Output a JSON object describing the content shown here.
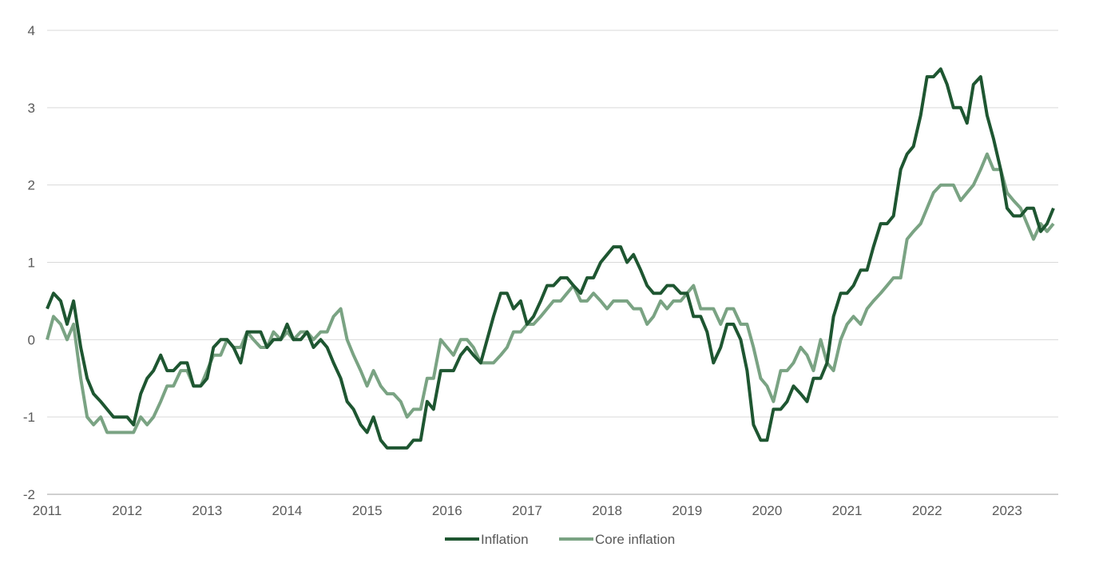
{
  "colors": {
    "inflation": "#1e5631",
    "core_inflation": "#7aa383",
    "grid": "#d9d9d9",
    "axis": "#bfbfbf",
    "text": "#595959"
  },
  "chart_data": {
    "type": "line",
    "title": "",
    "xlabel": "",
    "ylabel": "",
    "xlim": [
      2011,
      2023.64
    ],
    "ylim": [
      -2,
      4
    ],
    "y_ticks": [
      "-2",
      "-1",
      "0",
      "1",
      "2",
      "3",
      "4"
    ],
    "x_ticks": [
      "2011",
      "2012",
      "2013",
      "2014",
      "2015",
      "2016",
      "2017",
      "2018",
      "2019",
      "2020",
      "2021",
      "2022",
      "2023"
    ],
    "grid": true,
    "legend": "bottom-center",
    "series": [
      {
        "name": "Inflation",
        "points": [
          [
            2011.0,
            0.4
          ],
          [
            2011.08,
            0.6
          ],
          [
            2011.17,
            0.5
          ],
          [
            2011.25,
            0.2
          ],
          [
            2011.33,
            0.5
          ],
          [
            2011.42,
            -0.1
          ],
          [
            2011.5,
            -0.5
          ],
          [
            2011.58,
            -0.7
          ],
          [
            2011.67,
            -0.8
          ],
          [
            2011.75,
            -0.9
          ],
          [
            2011.83,
            -1.0
          ],
          [
            2011.92,
            -1.0
          ],
          [
            2012.0,
            -1.0
          ],
          [
            2012.08,
            -1.1
          ],
          [
            2012.17,
            -0.7
          ],
          [
            2012.25,
            -0.5
          ],
          [
            2012.33,
            -0.4
          ],
          [
            2012.42,
            -0.2
          ],
          [
            2012.5,
            -0.4
          ],
          [
            2012.58,
            -0.4
          ],
          [
            2012.67,
            -0.3
          ],
          [
            2012.75,
            -0.3
          ],
          [
            2012.83,
            -0.6
          ],
          [
            2012.92,
            -0.6
          ],
          [
            2013.0,
            -0.5
          ],
          [
            2013.08,
            -0.1
          ],
          [
            2013.17,
            0.0
          ],
          [
            2013.25,
            0.0
          ],
          [
            2013.33,
            -0.1
          ],
          [
            2013.42,
            -0.3
          ],
          [
            2013.5,
            0.1
          ],
          [
            2013.58,
            0.1
          ],
          [
            2013.67,
            0.1
          ],
          [
            2013.75,
            -0.1
          ],
          [
            2013.83,
            0.0
          ],
          [
            2013.92,
            0.0
          ],
          [
            2014.0,
            0.2
          ],
          [
            2014.08,
            0.0
          ],
          [
            2014.17,
            0.0
          ],
          [
            2014.25,
            0.1
          ],
          [
            2014.33,
            -0.1
          ],
          [
            2014.42,
            0.0
          ],
          [
            2014.5,
            -0.1
          ],
          [
            2014.58,
            -0.3
          ],
          [
            2014.67,
            -0.5
          ],
          [
            2014.75,
            -0.8
          ],
          [
            2014.83,
            -0.9
          ],
          [
            2014.92,
            -1.1
          ],
          [
            2015.0,
            -1.2
          ],
          [
            2015.08,
            -1.0
          ],
          [
            2015.17,
            -1.3
          ],
          [
            2015.25,
            -1.4
          ],
          [
            2015.33,
            -1.4
          ],
          [
            2015.42,
            -1.4
          ],
          [
            2015.5,
            -1.4
          ],
          [
            2015.58,
            -1.3
          ],
          [
            2015.67,
            -1.3
          ],
          [
            2015.75,
            -0.8
          ],
          [
            2015.83,
            -0.9
          ],
          [
            2015.92,
            -0.4
          ],
          [
            2016.0,
            -0.4
          ],
          [
            2016.08,
            -0.4
          ],
          [
            2016.17,
            -0.2
          ],
          [
            2016.25,
            -0.1
          ],
          [
            2016.33,
            -0.2
          ],
          [
            2016.42,
            -0.3
          ],
          [
            2016.5,
            0.0
          ],
          [
            2016.58,
            0.3
          ],
          [
            2016.67,
            0.6
          ],
          [
            2016.75,
            0.6
          ],
          [
            2016.83,
            0.4
          ],
          [
            2016.92,
            0.5
          ],
          [
            2017.0,
            0.2
          ],
          [
            2017.08,
            0.3
          ],
          [
            2017.17,
            0.5
          ],
          [
            2017.25,
            0.7
          ],
          [
            2017.33,
            0.7
          ],
          [
            2017.42,
            0.8
          ],
          [
            2017.5,
            0.8
          ],
          [
            2017.58,
            0.7
          ],
          [
            2017.67,
            0.6
          ],
          [
            2017.75,
            0.8
          ],
          [
            2017.83,
            0.8
          ],
          [
            2017.92,
            1.0
          ],
          [
            2018.0,
            1.1
          ],
          [
            2018.08,
            1.2
          ],
          [
            2018.17,
            1.2
          ],
          [
            2018.25,
            1.0
          ],
          [
            2018.33,
            1.1
          ],
          [
            2018.42,
            0.9
          ],
          [
            2018.5,
            0.7
          ],
          [
            2018.58,
            0.6
          ],
          [
            2018.67,
            0.6
          ],
          [
            2018.75,
            0.7
          ],
          [
            2018.83,
            0.7
          ],
          [
            2018.92,
            0.6
          ],
          [
            2019.0,
            0.6
          ],
          [
            2019.08,
            0.3
          ],
          [
            2019.17,
            0.3
          ],
          [
            2019.25,
            0.1
          ],
          [
            2019.33,
            -0.3
          ],
          [
            2019.42,
            -0.1
          ],
          [
            2019.5,
            0.2
          ],
          [
            2019.58,
            0.2
          ],
          [
            2019.67,
            0.0
          ],
          [
            2019.75,
            -0.4
          ],
          [
            2019.83,
            -1.1
          ],
          [
            2019.92,
            -1.3
          ],
          [
            2020.0,
            -1.3
          ],
          [
            2020.08,
            -0.9
          ],
          [
            2020.17,
            -0.9
          ],
          [
            2020.25,
            -0.8
          ],
          [
            2020.33,
            -0.6
          ],
          [
            2020.42,
            -0.7
          ],
          [
            2020.5,
            -0.8
          ],
          [
            2020.58,
            -0.5
          ],
          [
            2020.67,
            -0.5
          ],
          [
            2020.75,
            -0.3
          ],
          [
            2020.83,
            0.3
          ],
          [
            2020.92,
            0.6
          ],
          [
            2021.0,
            0.6
          ],
          [
            2021.08,
            0.7
          ],
          [
            2021.17,
            0.9
          ],
          [
            2021.25,
            0.9
          ],
          [
            2021.33,
            1.2
          ],
          [
            2021.42,
            1.5
          ],
          [
            2021.5,
            1.5
          ],
          [
            2021.58,
            1.6
          ],
          [
            2021.67,
            2.2
          ],
          [
            2021.75,
            2.4
          ],
          [
            2021.83,
            2.5
          ],
          [
            2021.92,
            2.9
          ],
          [
            2022.0,
            3.4
          ],
          [
            2022.08,
            3.4
          ],
          [
            2022.17,
            3.5
          ],
          [
            2022.25,
            3.3
          ],
          [
            2022.33,
            3.0
          ],
          [
            2022.42,
            3.0
          ],
          [
            2022.5,
            2.8
          ],
          [
            2022.58,
            3.3
          ],
          [
            2022.67,
            3.4
          ],
          [
            2022.75,
            2.9
          ],
          [
            2022.83,
            2.6
          ],
          [
            2022.92,
            2.2
          ],
          [
            2023.0,
            1.7
          ],
          [
            2023.08,
            1.6
          ],
          [
            2023.17,
            1.6
          ],
          [
            2023.25,
            1.7
          ],
          [
            2023.33,
            1.7
          ],
          [
            2023.42,
            1.4
          ],
          [
            2023.5,
            1.5
          ],
          [
            2023.58,
            1.7
          ]
        ]
      },
      {
        "name": "Core inflation",
        "points": [
          [
            2011.0,
            0.0
          ],
          [
            2011.08,
            0.3
          ],
          [
            2011.17,
            0.2
          ],
          [
            2011.25,
            0.0
          ],
          [
            2011.33,
            0.2
          ],
          [
            2011.42,
            -0.5
          ],
          [
            2011.5,
            -1.0
          ],
          [
            2011.58,
            -1.1
          ],
          [
            2011.67,
            -1.0
          ],
          [
            2011.75,
            -1.2
          ],
          [
            2011.83,
            -1.2
          ],
          [
            2011.92,
            -1.2
          ],
          [
            2012.0,
            -1.2
          ],
          [
            2012.08,
            -1.2
          ],
          [
            2012.17,
            -1.0
          ],
          [
            2012.25,
            -1.1
          ],
          [
            2012.33,
            -1.0
          ],
          [
            2012.42,
            -0.8
          ],
          [
            2012.5,
            -0.6
          ],
          [
            2012.58,
            -0.6
          ],
          [
            2012.67,
            -0.4
          ],
          [
            2012.75,
            -0.4
          ],
          [
            2012.83,
            -0.6
          ],
          [
            2012.92,
            -0.6
          ],
          [
            2013.0,
            -0.4
          ],
          [
            2013.08,
            -0.2
          ],
          [
            2013.17,
            -0.2
          ],
          [
            2013.25,
            0.0
          ],
          [
            2013.33,
            -0.1
          ],
          [
            2013.42,
            -0.1
          ],
          [
            2013.5,
            0.1
          ],
          [
            2013.58,
            0.0
          ],
          [
            2013.67,
            -0.1
          ],
          [
            2013.75,
            -0.1
          ],
          [
            2013.83,
            0.1
          ],
          [
            2013.92,
            0.0
          ],
          [
            2014.0,
            0.1
          ],
          [
            2014.08,
            0.0
          ],
          [
            2014.17,
            0.1
          ],
          [
            2014.25,
            0.1
          ],
          [
            2014.33,
            0.0
          ],
          [
            2014.42,
            0.1
          ],
          [
            2014.5,
            0.1
          ],
          [
            2014.58,
            0.3
          ],
          [
            2014.67,
            0.4
          ],
          [
            2014.75,
            0.0
          ],
          [
            2014.83,
            -0.2
          ],
          [
            2014.92,
            -0.4
          ],
          [
            2015.0,
            -0.6
          ],
          [
            2015.08,
            -0.4
          ],
          [
            2015.17,
            -0.6
          ],
          [
            2015.25,
            -0.7
          ],
          [
            2015.33,
            -0.7
          ],
          [
            2015.42,
            -0.8
          ],
          [
            2015.5,
            -1.0
          ],
          [
            2015.58,
            -0.9
          ],
          [
            2015.67,
            -0.9
          ],
          [
            2015.75,
            -0.5
          ],
          [
            2015.83,
            -0.5
          ],
          [
            2015.92,
            0.0
          ],
          [
            2016.0,
            -0.1
          ],
          [
            2016.08,
            -0.2
          ],
          [
            2016.17,
            0.0
          ],
          [
            2016.25,
            0.0
          ],
          [
            2016.33,
            -0.1
          ],
          [
            2016.42,
            -0.3
          ],
          [
            2016.5,
            -0.3
          ],
          [
            2016.58,
            -0.3
          ],
          [
            2016.67,
            -0.2
          ],
          [
            2016.75,
            -0.1
          ],
          [
            2016.83,
            0.1
          ],
          [
            2016.92,
            0.1
          ],
          [
            2017.0,
            0.2
          ],
          [
            2017.08,
            0.2
          ],
          [
            2017.17,
            0.3
          ],
          [
            2017.25,
            0.4
          ],
          [
            2017.33,
            0.5
          ],
          [
            2017.42,
            0.5
          ],
          [
            2017.5,
            0.6
          ],
          [
            2017.58,
            0.7
          ],
          [
            2017.67,
            0.5
          ],
          [
            2017.75,
            0.5
          ],
          [
            2017.83,
            0.6
          ],
          [
            2017.92,
            0.5
          ],
          [
            2018.0,
            0.4
          ],
          [
            2018.08,
            0.5
          ],
          [
            2018.17,
            0.5
          ],
          [
            2018.25,
            0.5
          ],
          [
            2018.33,
            0.4
          ],
          [
            2018.42,
            0.4
          ],
          [
            2018.5,
            0.2
          ],
          [
            2018.58,
            0.3
          ],
          [
            2018.67,
            0.5
          ],
          [
            2018.75,
            0.4
          ],
          [
            2018.83,
            0.5
          ],
          [
            2018.92,
            0.5
          ],
          [
            2019.0,
            0.6
          ],
          [
            2019.08,
            0.7
          ],
          [
            2019.17,
            0.4
          ],
          [
            2019.25,
            0.4
          ],
          [
            2019.33,
            0.4
          ],
          [
            2019.42,
            0.2
          ],
          [
            2019.5,
            0.4
          ],
          [
            2019.58,
            0.4
          ],
          [
            2019.67,
            0.2
          ],
          [
            2019.75,
            0.2
          ],
          [
            2019.83,
            -0.1
          ],
          [
            2019.92,
            -0.5
          ],
          [
            2020.0,
            -0.6
          ],
          [
            2020.08,
            -0.8
          ],
          [
            2020.17,
            -0.4
          ],
          [
            2020.25,
            -0.4
          ],
          [
            2020.33,
            -0.3
          ],
          [
            2020.42,
            -0.1
          ],
          [
            2020.5,
            -0.2
          ],
          [
            2020.58,
            -0.4
          ],
          [
            2020.67,
            0.0
          ],
          [
            2020.75,
            -0.3
          ],
          [
            2020.83,
            -0.4
          ],
          [
            2020.92,
            0.0
          ],
          [
            2021.0,
            0.2
          ],
          [
            2021.08,
            0.3
          ],
          [
            2021.17,
            0.2
          ],
          [
            2021.25,
            0.4
          ],
          [
            2021.33,
            0.5
          ],
          [
            2021.42,
            0.6
          ],
          [
            2021.5,
            0.7
          ],
          [
            2021.58,
            0.8
          ],
          [
            2021.67,
            0.8
          ],
          [
            2021.75,
            1.3
          ],
          [
            2021.83,
            1.4
          ],
          [
            2021.92,
            1.5
          ],
          [
            2022.0,
            1.7
          ],
          [
            2022.08,
            1.9
          ],
          [
            2022.17,
            2.0
          ],
          [
            2022.25,
            2.0
          ],
          [
            2022.33,
            2.0
          ],
          [
            2022.42,
            1.8
          ],
          [
            2022.5,
            1.9
          ],
          [
            2022.58,
            2.0
          ],
          [
            2022.67,
            2.2
          ],
          [
            2022.75,
            2.4
          ],
          [
            2022.83,
            2.2
          ],
          [
            2022.92,
            2.2
          ],
          [
            2023.0,
            1.9
          ],
          [
            2023.08,
            1.8
          ],
          [
            2023.17,
            1.7
          ],
          [
            2023.25,
            1.5
          ],
          [
            2023.33,
            1.3
          ],
          [
            2023.42,
            1.5
          ],
          [
            2023.5,
            1.4
          ],
          [
            2023.58,
            1.5
          ]
        ]
      }
    ]
  }
}
